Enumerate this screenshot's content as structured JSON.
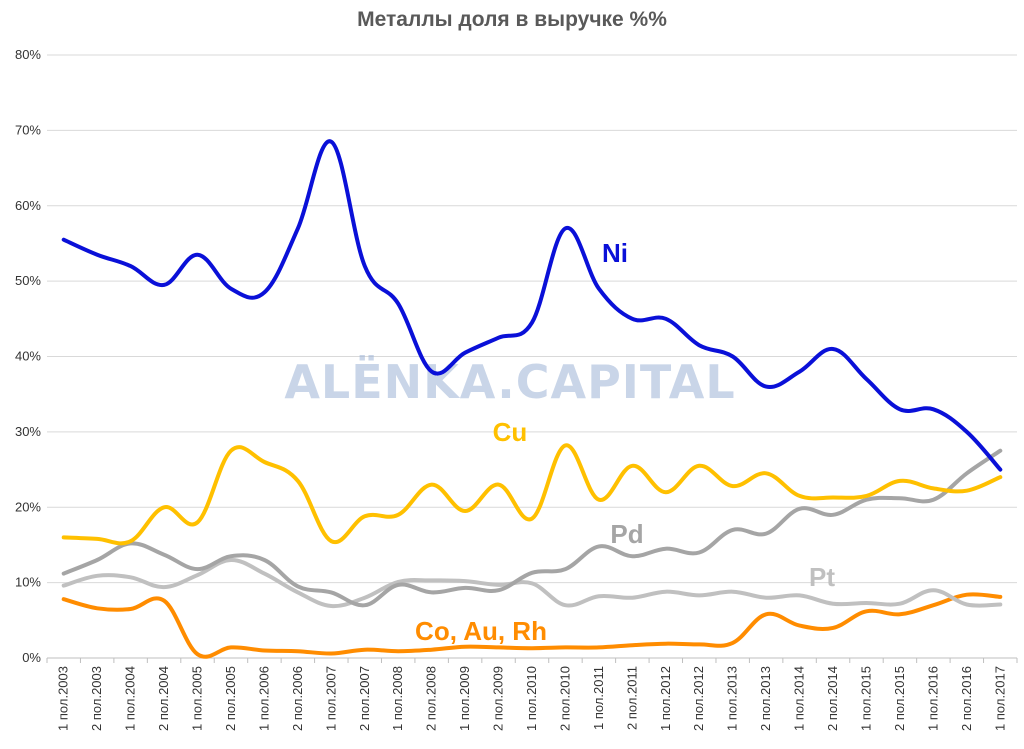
{
  "chart_data": {
    "type": "line",
    "title": "Металлы доля в выручке %%",
    "watermark": "ALЁNKA.CAPITAL",
    "ylim": [
      0,
      80
    ],
    "yticks": [
      "0%",
      "10%",
      "20%",
      "30%",
      "40%",
      "50%",
      "60%",
      "70%",
      "80%"
    ],
    "grid": true,
    "categories": [
      "1 пол.2003",
      "2 пол.2003",
      "1 пол.2004",
      "2 пол.2004",
      "1 пол.2005",
      "2 пол.2005",
      "1 пол.2006",
      "2 пол.2006",
      "1 пол.2007",
      "2 пол.2007",
      "1 пол.2008",
      "2 пол.2008",
      "1 пол.2009",
      "2 пол.2009",
      "1 пол.2010",
      "2 пол.2010",
      "1 пол.2011",
      "2 пол.2011",
      "1 пол.2012",
      "2 пол.2012",
      "1 пол.2013",
      "2 пол.2013",
      "1 пол.2014",
      "2 пол.2014",
      "1 пол.2015",
      "2 пол.2015",
      "1 пол.2016",
      "2 пол.2016",
      "1 пол.2017"
    ],
    "series": [
      {
        "name": "Ni",
        "color": "#0a10d8",
        "values": [
          55.5,
          53.5,
          52,
          49.5,
          53.5,
          49,
          48.5,
          57,
          68.5,
          52,
          47,
          38,
          40.5,
          42.5,
          44.5,
          57,
          49,
          45,
          45,
          41.5,
          40,
          36,
          38,
          41,
          37,
          33,
          33,
          30,
          25
        ]
      },
      {
        "name": "Cu",
        "color": "#ffc000",
        "values": [
          16,
          15.8,
          15.5,
          20,
          18,
          27.5,
          26,
          23.5,
          15.5,
          18.8,
          19,
          23,
          19.5,
          23,
          18.5,
          28.2,
          21,
          25.5,
          22,
          25.5,
          22.8,
          24.5,
          21.5,
          21.3,
          21.5,
          23.5,
          22.5,
          22.2,
          24
        ]
      },
      {
        "name": "Pd",
        "color": "#a5a5a5",
        "values": [
          11.2,
          13,
          15.2,
          13.7,
          11.8,
          13.5,
          13,
          9.5,
          8.7,
          7,
          9.7,
          8.7,
          9.3,
          9,
          11.3,
          11.8,
          14.8,
          13.5,
          14.5,
          14,
          17,
          16.5,
          19.8,
          19,
          21,
          21.2,
          21,
          24.5,
          27.5
        ]
      },
      {
        "name": "Pt",
        "color": "#c0c0c0",
        "values": [
          9.6,
          10.9,
          10.7,
          9.4,
          11,
          13,
          11.2,
          8.7,
          6.9,
          8,
          10.1,
          10.3,
          10.2,
          9.7,
          9.9,
          7,
          8.2,
          8,
          8.8,
          8.3,
          8.8,
          8,
          8.3,
          7.2,
          7.3,
          7.2,
          9,
          7.1,
          7.1
        ]
      },
      {
        "name": "Co, Au, Rh",
        "color": "#ff8c00",
        "values": [
          7.8,
          6.6,
          6.5,
          7.6,
          0.5,
          1.4,
          1,
          0.9,
          0.6,
          1.1,
          0.9,
          1.1,
          1.5,
          1.4,
          1.3,
          1.4,
          1.4,
          1.7,
          1.9,
          1.8,
          2,
          5.8,
          4.3,
          4,
          6.2,
          5.8,
          7,
          8.4,
          8.1
        ]
      }
    ]
  }
}
